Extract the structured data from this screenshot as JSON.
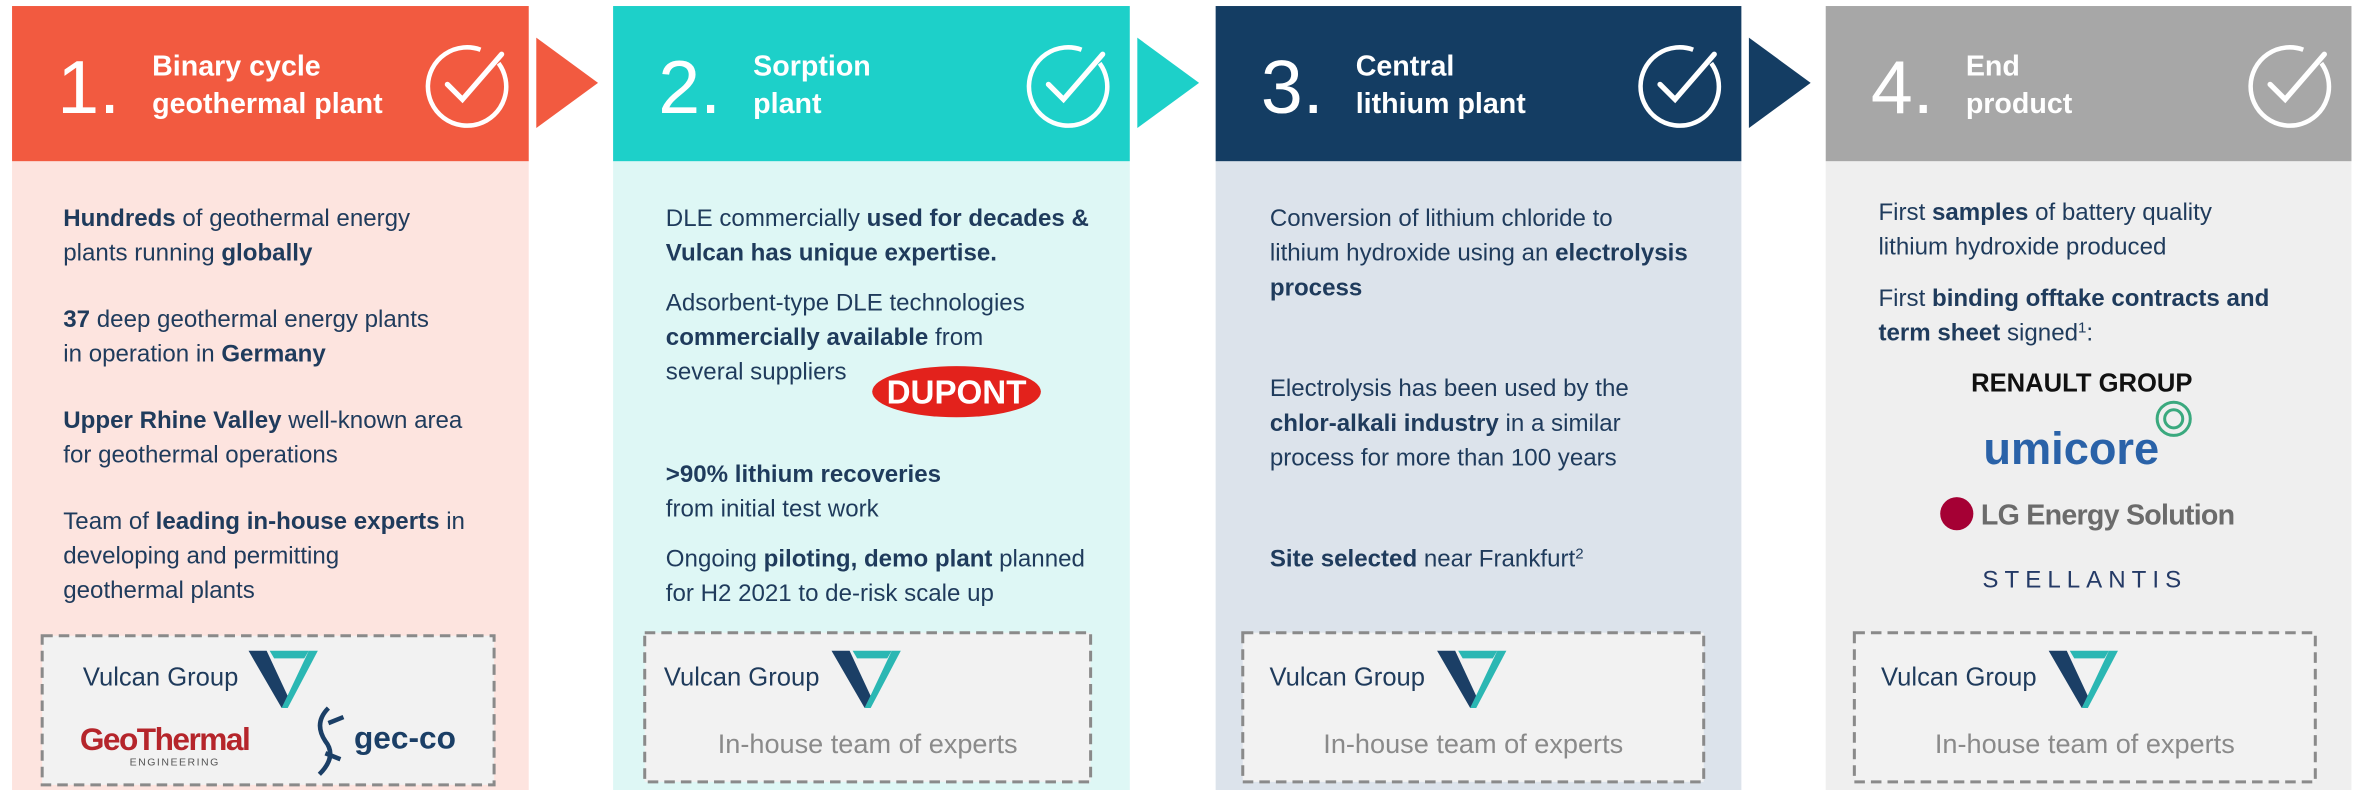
{
  "columns": [
    {
      "number": "1.",
      "title": [
        "Binary cycle",
        "geothermal plant"
      ],
      "paragraphs": [
        [
          [
            {
              "t": "Hundreds",
              "b": true
            },
            {
              "t": " of geothermal energy"
            }
          ],
          [
            {
              "t": "plants running "
            },
            {
              "t": "globally",
              "b": true
            }
          ]
        ],
        [
          [
            {
              "t": "37",
              "b": true
            },
            {
              "t": " deep geothermal energy plants"
            }
          ],
          [
            {
              "t": "in operation in "
            },
            {
              "t": "Germany",
              "b": true
            }
          ]
        ],
        [
          [
            {
              "t": "Upper Rhine Valley",
              "b": true
            },
            {
              "t": " well-known area"
            }
          ],
          [
            {
              "t": "for geothermal operations"
            }
          ]
        ],
        [
          [
            {
              "t": "Team of "
            },
            {
              "t": "leading in-house experts",
              "b": true
            },
            {
              "t": " in"
            }
          ],
          [
            {
              "t": "developing and permitting"
            }
          ],
          [
            {
              "t": "geothermal plants"
            }
          ]
        ]
      ],
      "footer": {
        "brand": "Vulcan Group",
        "logos": [
          "GeoThermal",
          "ENGINEERING",
          "gec-co"
        ]
      }
    },
    {
      "number": "2.",
      "title": [
        "Sorption",
        "plant"
      ],
      "paragraphs": [
        [
          [
            {
              "t": "DLE commercially "
            },
            {
              "t": "used for decades &",
              "b": true
            }
          ],
          [
            {
              "t": "Vulcan has unique expertise.",
              "b": true
            }
          ]
        ],
        [
          [
            {
              "t": "Adsorbent-type DLE technologies"
            }
          ],
          [
            {
              "t": "commercially available",
              "b": true
            },
            {
              "t": " from"
            }
          ],
          [
            {
              "t": "several suppliers"
            }
          ]
        ],
        [
          [
            {
              "t": ">90% lithium recoveries",
              "b": true
            }
          ],
          [
            {
              "t": "from initial test work"
            }
          ]
        ],
        [
          [
            {
              "t": "Ongoing "
            },
            {
              "t": "piloting, demo plant",
              "b": true
            },
            {
              "t": " planned"
            }
          ],
          [
            {
              "t": "for H2 2021 to de-risk scale up"
            }
          ]
        ]
      ],
      "supplier": "DUPONT",
      "footer": {
        "brand": "Vulcan Group",
        "caption": "In-house team of experts"
      }
    },
    {
      "number": "3.",
      "title": [
        "Central",
        "lithium plant"
      ],
      "paragraphs": [
        [
          [
            {
              "t": "Conversion of lithium chloride to"
            }
          ],
          [
            {
              "t": "lithium hydroxide using an "
            },
            {
              "t": "electrolysis",
              "b": true
            }
          ],
          [
            {
              "t": "process",
              "b": true
            }
          ]
        ],
        [
          [
            {
              "t": "Electrolysis has been used by the"
            }
          ],
          [
            {
              "t": "chlor-alkali industry",
              "b": true
            },
            {
              "t": " in a similar"
            }
          ],
          [
            {
              "t": "process for more than 100 years"
            }
          ]
        ],
        [
          [
            {
              "t": "Site selected",
              "b": true
            },
            {
              "t": " near Frankfurt"
            },
            {
              "t": "2",
              "sup": true
            }
          ]
        ]
      ],
      "footer": {
        "brand": "Vulcan Group",
        "caption": "In-house team of experts"
      }
    },
    {
      "number": "4.",
      "title": [
        "End",
        "product"
      ],
      "paragraphs": [
        [
          [
            {
              "t": "First "
            },
            {
              "t": "samples",
              "b": true
            },
            {
              "t": " of battery quality"
            }
          ],
          [
            {
              "t": "lithium hydroxide produced"
            }
          ]
        ],
        [
          [
            {
              "t": "First "
            },
            {
              "t": "binding offtake contracts and",
              "b": true
            }
          ],
          [
            {
              "t": "term sheet",
              "b": true
            },
            {
              "t": " signed"
            },
            {
              "t": "1",
              "sup": true
            },
            {
              "t": ":"
            }
          ]
        ]
      ],
      "partners": [
        "RENAULT GROUP",
        "umicore",
        "LG Energy Solution",
        "STELLANTIS"
      ],
      "footer": {
        "brand": "Vulcan Group",
        "caption": "In-house team of experts"
      }
    }
  ]
}
